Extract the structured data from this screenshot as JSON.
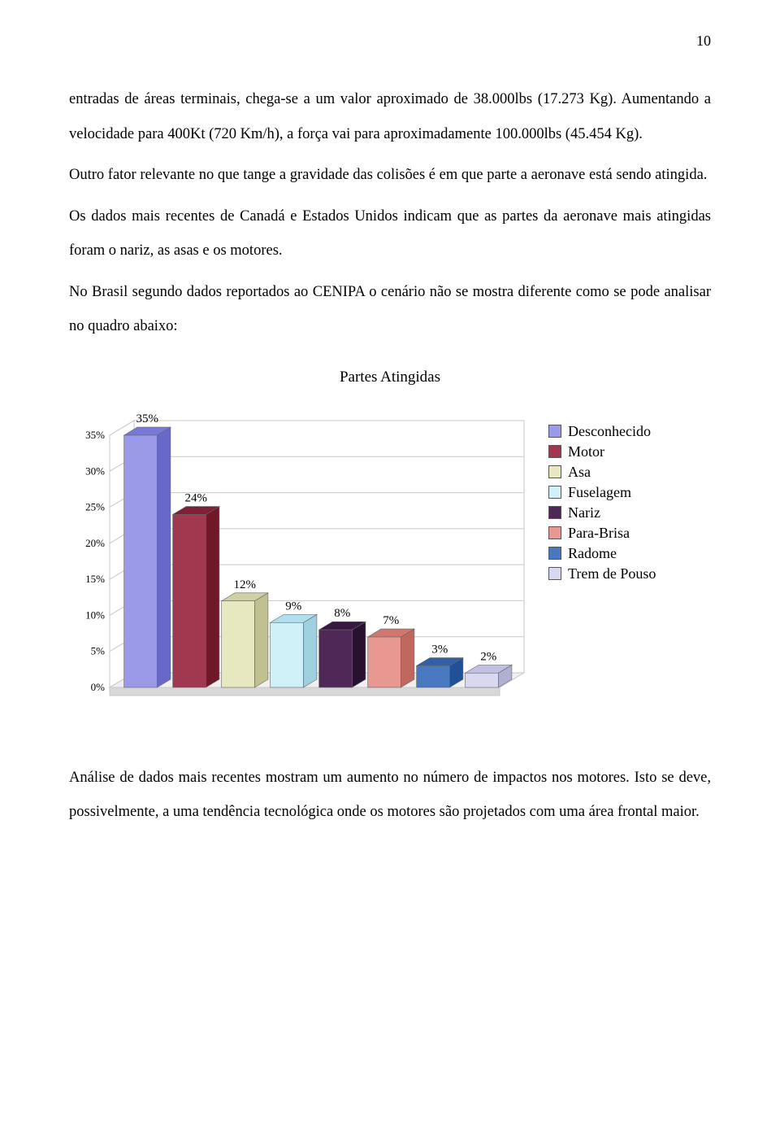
{
  "page_number": "10",
  "paragraphs": [
    "entradas de áreas terminais, chega-se a um valor aproximado de 38.000lbs (17.273 Kg). Aumentando a velocidade para 400Kt (720 Km/h), a força vai para aproximadamente 100.000lbs (45.454 Kg).",
    "Outro fator relevante no que tange a gravidade das colisões é em que parte a aeronave está sendo atingida.",
    "Os dados mais recentes de Canadá e Estados Unidos indicam que as partes da aeronave mais atingidas foram o nariz, as asas e os motores.",
    "No Brasil segundo dados reportados ao CENIPA o cenário não se mostra diferente como se pode analisar no quadro abaixo:"
  ],
  "chart": {
    "title": "Partes Atingidas",
    "type": "bar-3d",
    "categories": [
      "Desconhecido",
      "Motor",
      "Asa",
      "Fuselagem",
      "Nariz",
      "Para-Brisa",
      "Radome",
      "Trem de Pouso"
    ],
    "values": [
      35,
      24,
      12,
      9,
      8,
      7,
      3,
      2
    ],
    "value_labels": [
      "35%",
      "24%",
      "12%",
      "9%",
      "8%",
      "7%",
      "3%",
      "2%"
    ],
    "colors": [
      "#9a9ae8",
      "#a03850",
      "#e8e8c0",
      "#d0f0f8",
      "#502858",
      "#e89890",
      "#4878c0",
      "#d8d8f0"
    ],
    "top_shade": [
      "#7878d8",
      "#802038",
      "#d0d0a0",
      "#b0e0f0",
      "#381840",
      "#d07870",
      "#3060a8",
      "#c0c0e0"
    ],
    "side_shade": [
      "#6868c8",
      "#701828",
      "#c0c090",
      "#a0d0e0",
      "#281030",
      "#c06860",
      "#205098",
      "#b0b0d0"
    ],
    "y_ticks": [
      "0%",
      "5%",
      "10%",
      "15%",
      "20%",
      "25%",
      "30%",
      "35%"
    ],
    "y_max": 35,
    "grid_color": "#c8c8c8",
    "text_color": "#000000",
    "axis_fontsize": 13,
    "valuelabel_fontsize": 15,
    "legend_fontsize": 18,
    "floor_front": "#d8d8d8",
    "floor_top": "#f0f0f0",
    "wall_color": "#ffffff"
  },
  "footer_paragraphs": [
    "Análise de dados mais recentes mostram um aumento no número de impactos nos motores. Isto se deve, possivelmente, a uma tendência tecnológica onde os motores são projetados com uma área frontal maior."
  ]
}
